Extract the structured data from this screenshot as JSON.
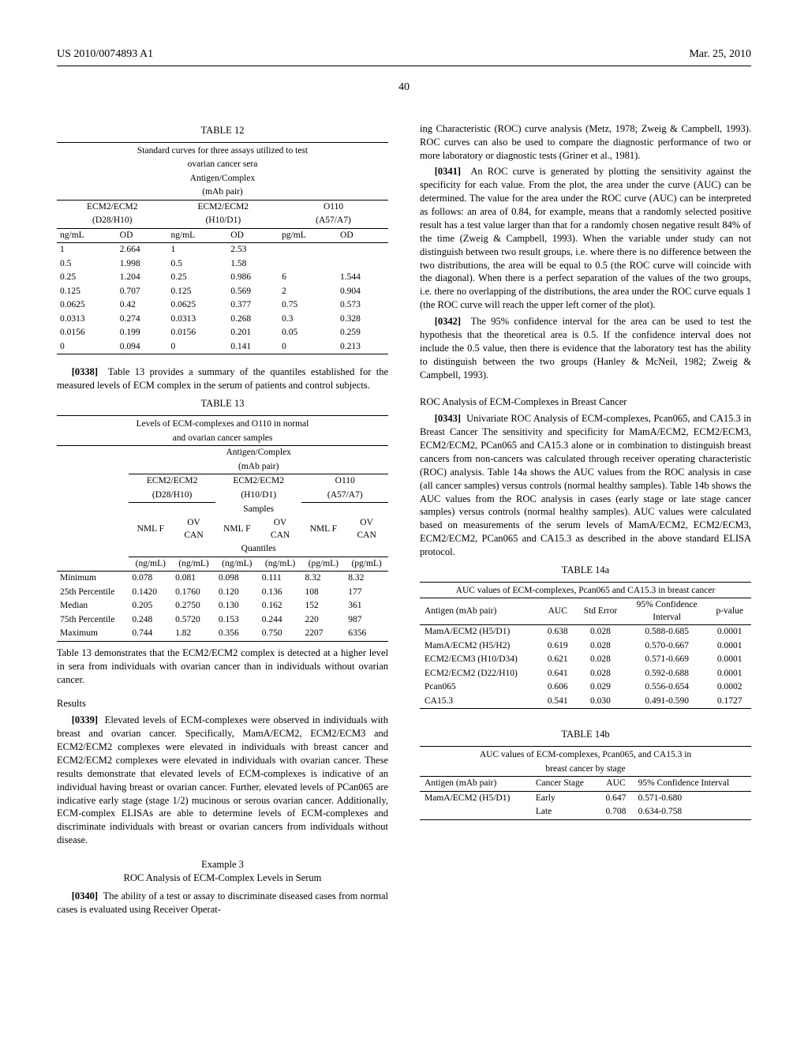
{
  "header_left": "US 2010/0074893 A1",
  "header_right": "Mar. 25, 2010",
  "page_number": "40",
  "t12": {
    "label": "TABLE 12",
    "title1": "Standard curves for three assays utilized to test",
    "title2": "ovarian cancer sera",
    "title3": "Antigen/Complex",
    "title4": "(mAb pair)",
    "h1a": "ECM2/ECM2",
    "h1b": "(D28/H10)",
    "h2a": "ECM2/ECM2",
    "h2b": "(H10/D1)",
    "h3a": "O110",
    "h3b": "(A57/A7)",
    "u1": "ng/mL",
    "u2": "OD",
    "u3": "ng/mL",
    "u4": "OD",
    "u5": "pg/mL",
    "u6": "OD",
    "rows": [
      [
        "1",
        "2.664",
        "1",
        "2.53",
        "",
        ""
      ],
      [
        "0.5",
        "1.998",
        "0.5",
        "1.58",
        "",
        ""
      ],
      [
        "0.25",
        "1.204",
        "0.25",
        "0.986",
        "6",
        "1.544"
      ],
      [
        "0.125",
        "0.707",
        "0.125",
        "0.569",
        "2",
        "0.904"
      ],
      [
        "0.0625",
        "0.42",
        "0.0625",
        "0.377",
        "0.75",
        "0.573"
      ],
      [
        "0.0313",
        "0.274",
        "0.0313",
        "0.268",
        "0.3",
        "0.328"
      ],
      [
        "0.0156",
        "0.199",
        "0.0156",
        "0.201",
        "0.05",
        "0.259"
      ],
      [
        "0",
        "0.094",
        "0",
        "0.141",
        "0",
        "0.213"
      ]
    ]
  },
  "p0338_num": "[0338]",
  "p0338": "Table 13 provides a summary of the quantiles established for the measured levels of ECM complex in the serum of patients and control subjects.",
  "t13": {
    "label": "TABLE 13",
    "title1": "Levels of ECM-complexes and O110 in normal",
    "title2": "and ovarian cancer samples",
    "ac": "Antigen/Complex",
    "mp": "(mAb pair)",
    "h1a": "ECM2/ECM2",
    "h1b": "(D28/H10)",
    "h2a": "ECM2/ECM2",
    "h2b": "(H10/D1)",
    "h2c": "Samples",
    "h3a": "O110",
    "h3b": "(A57/A7)",
    "s_nml": "NML F",
    "s_ov": "OV",
    "s_can": "CAN",
    "q": "Quantiles",
    "u": "(ng/mL)",
    "up": "(pg/mL)",
    "rownames": [
      "Minimum",
      "25th Percentile",
      "Median",
      "75th Percentile",
      "Maximum"
    ],
    "rows": [
      [
        "0.078",
        "0.081",
        "0.098",
        "0.111",
        "8.32",
        "8.32"
      ],
      [
        "0.1420",
        "0.1760",
        "0.120",
        "0.136",
        "108",
        "177"
      ],
      [
        "0.205",
        "0.2750",
        "0.130",
        "0.162",
        "152",
        "361"
      ],
      [
        "0.248",
        "0.5720",
        "0.153",
        "0.244",
        "220",
        "987"
      ],
      [
        "0.744",
        "1.82",
        "0.356",
        "0.750",
        "2207",
        "6356"
      ]
    ]
  },
  "post_t13": "Table 13 demonstrates that the ECM2/ECM2 complex is detected at a higher level in sera from individuals with ovarian cancer than in individuals without ovarian cancer.",
  "results_head": "Results",
  "p0339_num": "[0339]",
  "p0339": "Elevated levels of ECM-complexes were observed in individuals with breast and ovarian cancer. Specifically, MamA/ECM2, ECM2/ECM3 and ECM2/ECM2 complexes were elevated in individuals with breast cancer and ECM2/ECM2 complexes were elevated in individuals with ovarian cancer. These results demonstrate that elevated levels of ECM-complexes is indicative of an individual having breast or ovarian cancer. Further, elevated levels of PCan065 are indicative early stage (stage 1/2) mucinous or serous ovarian cancer. Additionally, ECM-complex ELISAs are able to determine levels of ECM-complexes and discriminate individuals with breast or ovarian cancers from individuals without disease.",
  "ex3": "Example 3",
  "ex3_sub": "ROC Analysis of ECM-Complex Levels in Serum",
  "p0340_num": "[0340]",
  "p0340": "The ability of a test or assay to discriminate diseased cases from normal cases is evaluated using Receiver Operat-",
  "r1": "ing Characteristic (ROC) curve analysis (Metz, 1978; Zweig & Campbell, 1993). ROC curves can also be used to compare the diagnostic performance of two or more laboratory or diagnostic tests (Griner et al., 1981).",
  "p0341_num": "[0341]",
  "p0341": "An ROC curve is generated by plotting the sensitivity against the specificity for each value. From the plot, the area under the curve (AUC) can be determined. The value for the area under the ROC curve (AUC) can be interpreted as follows: an area of 0.84, for example, means that a randomly selected positive result has a test value larger than that for a randomly chosen negative result 84% of the time (Zweig & Campbell, 1993). When the variable under study can not distinguish between two result groups, i.e. where there is no difference between the two distributions, the area will be equal to 0.5 (the ROC curve will coincide with the diagonal). When there is a perfect separation of the values of the two groups, i.e. there no overlapping of the distributions, the area under the ROC curve equals 1 (the ROC curve will reach the upper left corner of the plot).",
  "p0342_num": "[0342]",
  "p0342": "The 95% confidence interval for the area can be used to test the hypothesis that the theoretical area is 0.5. If the confidence interval does not include the 0.5 value, then there is evidence that the laboratory test has the ability to distinguish between the two groups (Hanley & McNeil, 1982; Zweig & Campbell, 1993).",
  "roc_head": "ROC Analysis of ECM-Complexes in Breast Cancer",
  "p0343_num": "[0343]",
  "p0343": "Univariate ROC Analysis of ECM-complexes, Pcan065, and CA15.3 in Breast Cancer The sensitivity and specificity for MamA/ECM2, ECM2/ECM3, ECM2/ECM2, PCan065 and CA15.3 alone or in combination to distinguish breast cancers from non-cancers was calculated through receiver operating characteristic (ROC) analysis. Table 14a shows the AUC values from the ROC analysis in case (all cancer samples) versus controls (normal healthy samples). Table 14b shows the AUC values from the ROC analysis in cases (early stage or late stage cancer samples) versus controls (normal healthy samples). AUC values were calculated based on measurements of the serum levels of MamA/ECM2, ECM2/ECM3, ECM2/ECM2, PCan065 and CA15.3 as described in the above standard ELISA protocol.",
  "t14a": {
    "label": "TABLE 14a",
    "title": "AUC values of ECM-complexes, Pcan065 and CA15.3 in breast cancer",
    "h1": "Antigen (mAb pair)",
    "h2": "AUC",
    "h3": "Std Error",
    "h4a": "95% Confidence",
    "h4b": "Interval",
    "h5": "p-value",
    "rows": [
      [
        "MamA/ECM2 (H5/D1)",
        "0.638",
        "0.028",
        "0.588-0.685",
        "0.0001"
      ],
      [
        "MamA/ECM2 (H5/H2)",
        "0.619",
        "0.028",
        "0.570-0.667",
        "0.0001"
      ],
      [
        "ECM2/ECM3 (H10/D34)",
        "0.621",
        "0.028",
        "0.571-0.669",
        "0.0001"
      ],
      [
        "ECM2/ECM2 (D22/H10)",
        "0.641",
        "0.028",
        "0.592-0.688",
        "0.0001"
      ],
      [
        "Pcan065",
        "0.606",
        "0.029",
        "0.556-0.654",
        "0.0002"
      ],
      [
        "CA15.3",
        "0.541",
        "0.030",
        "0.491-0.590",
        "0.1727"
      ]
    ]
  },
  "t14b": {
    "label": "TABLE 14b",
    "title1": "AUC values of ECM-complexes, Pcan065, and CA15.3 in",
    "title2": "breast cancer by stage",
    "h1": "Antigen (mAb pair)",
    "h2": "Cancer Stage",
    "h3": "AUC",
    "h4": "95% Confidence Interval",
    "rows": [
      [
        "MamA/ECM2 (H5/D1)",
        "Early",
        "0.647",
        "0.571-0.680"
      ],
      [
        "",
        "Late",
        "0.708",
        "0.634-0.758"
      ]
    ]
  }
}
